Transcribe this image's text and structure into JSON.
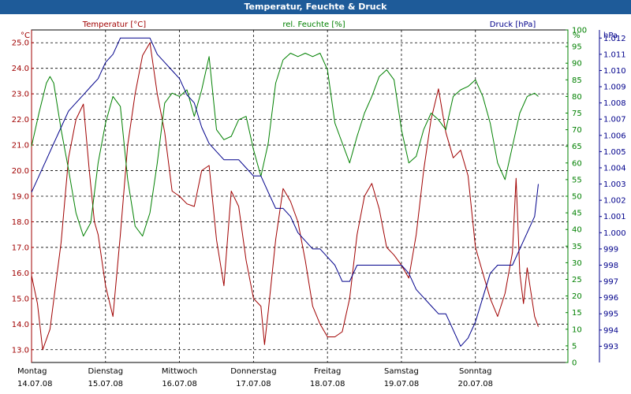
{
  "window": {
    "title": "Temperatur, Feuchte & Druck"
  },
  "colors": {
    "temperature": "#a00000",
    "humidity": "#008000",
    "pressure": "#00008b",
    "titlebar": "#1e5b99"
  },
  "chart_data": {
    "type": "line",
    "title": "Temperatur, Feuchte & Druck",
    "grid": true,
    "x_days": [
      {
        "day": "Montag",
        "date": "14.07.08"
      },
      {
        "day": "Dienstag",
        "date": "15.07.08"
      },
      {
        "day": "Mittwoch",
        "date": "16.07.08"
      },
      {
        "day": "Donnerstag",
        "date": "17.07.08"
      },
      {
        "day": "Freitag",
        "date": "18.07.08"
      },
      {
        "day": "Samstag",
        "date": "19.07.08"
      },
      {
        "day": "Sonntag",
        "date": "20.07.08"
      }
    ],
    "xlim": [
      0,
      7.25
    ],
    "axes": {
      "temperature": {
        "unit": "°C",
        "label": "Temperatur [°C]",
        "ylim": [
          12.5,
          25.5
        ],
        "ticks": [
          13.0,
          14.0,
          15.0,
          16.0,
          17.0,
          18.0,
          19.0,
          20.0,
          21.0,
          22.0,
          23.0,
          24.0,
          25.0
        ],
        "side": "left"
      },
      "humidity": {
        "unit": "%",
        "label": "rel. Feuchte [%]",
        "ylim": [
          0,
          100
        ],
        "ticks": [
          0,
          5,
          10,
          15,
          20,
          25,
          30,
          35,
          40,
          45,
          50,
          55,
          60,
          65,
          70,
          75,
          80,
          85,
          90,
          95,
          100
        ],
        "side": "right"
      },
      "pressure": {
        "unit": "hPa",
        "label": "Druck [hPa]",
        "ylim": [
          992,
          1012.5
        ],
        "ticks": [
          993,
          994,
          995,
          996,
          997,
          998,
          999,
          1000,
          1001,
          1002,
          1003,
          1004,
          1005,
          1006,
          1007,
          1008,
          1009,
          1010,
          1011,
          1012
        ],
        "side": "right"
      }
    },
    "series": [
      {
        "name": "Temperatur [°C]",
        "axis": "temperature",
        "x": [
          0,
          0.08,
          0.15,
          0.25,
          0.4,
          0.5,
          0.6,
          0.7,
          0.78,
          0.85,
          0.9,
          1.0,
          1.1,
          1.2,
          1.3,
          1.4,
          1.5,
          1.6,
          1.7,
          1.8,
          1.9,
          2.0,
          2.1,
          2.2,
          2.3,
          2.4,
          2.5,
          2.6,
          2.7,
          2.8,
          2.9,
          3.0,
          3.1,
          3.15,
          3.2,
          3.3,
          3.4,
          3.5,
          3.6,
          3.7,
          3.8,
          3.9,
          4.0,
          4.1,
          4.2,
          4.3,
          4.4,
          4.5,
          4.6,
          4.7,
          4.8,
          4.9,
          5.0,
          5.1,
          5.2,
          5.3,
          5.4,
          5.5,
          5.6,
          5.7,
          5.8,
          5.9,
          6.0,
          6.1,
          6.2,
          6.3,
          6.4,
          6.5,
          6.55,
          6.6,
          6.65,
          6.7,
          6.8,
          6.85
        ],
        "values": [
          15.9,
          14.8,
          13.0,
          13.8,
          17.2,
          20.5,
          22.0,
          22.6,
          20.0,
          18.0,
          17.5,
          15.5,
          14.3,
          17.5,
          21.0,
          23.0,
          24.5,
          25.0,
          23.0,
          21.5,
          19.2,
          19.0,
          18.7,
          18.6,
          20.0,
          20.2,
          17.3,
          15.5,
          19.2,
          18.6,
          16.5,
          15.0,
          14.7,
          13.2,
          14.5,
          17.3,
          19.3,
          18.8,
          18.0,
          16.5,
          14.7,
          14.0,
          13.5,
          13.5,
          13.7,
          15.0,
          17.5,
          19.0,
          19.5,
          18.5,
          17.0,
          16.7,
          16.3,
          15.8,
          17.5,
          20.0,
          22.0,
          23.2,
          21.5,
          20.5,
          20.8,
          19.8,
          17.0,
          16.0,
          15.0,
          14.3,
          15.2,
          16.8,
          19.7,
          16.0,
          14.8,
          16.2,
          14.3,
          13.9
        ]
      },
      {
        "name": "rel. Feuchte [%]",
        "axis": "humidity",
        "x": [
          0,
          0.1,
          0.2,
          0.25,
          0.3,
          0.4,
          0.5,
          0.6,
          0.7,
          0.8,
          0.9,
          1.0,
          1.1,
          1.2,
          1.3,
          1.4,
          1.5,
          1.6,
          1.7,
          1.8,
          1.9,
          2.0,
          2.1,
          2.2,
          2.3,
          2.4,
          2.5,
          2.6,
          2.7,
          2.8,
          2.9,
          3.0,
          3.1,
          3.2,
          3.3,
          3.4,
          3.5,
          3.6,
          3.7,
          3.8,
          3.9,
          4.0,
          4.1,
          4.2,
          4.3,
          4.4,
          4.5,
          4.6,
          4.7,
          4.8,
          4.9,
          5.0,
          5.1,
          5.2,
          5.3,
          5.4,
          5.5,
          5.6,
          5.7,
          5.8,
          5.9,
          6.0,
          6.1,
          6.2,
          6.3,
          6.4,
          6.5,
          6.6,
          6.7,
          6.8,
          6.85
        ],
        "values": [
          65,
          75,
          84,
          86,
          84,
          70,
          58,
          45,
          38,
          42,
          60,
          72,
          80,
          77,
          55,
          41,
          38,
          45,
          60,
          78,
          81,
          80,
          82,
          74,
          82,
          92,
          70,
          67,
          68,
          73,
          74,
          64,
          56,
          66,
          84,
          91,
          93,
          92,
          93,
          92,
          93,
          88,
          72,
          66,
          60,
          68,
          75,
          80,
          86,
          88,
          85,
          70,
          60,
          62,
          70,
          75,
          73,
          70,
          80,
          82,
          83,
          85,
          80,
          72,
          60,
          55,
          65,
          75,
          80,
          81,
          80
        ]
      },
      {
        "name": "Druck [hPa]",
        "axis": "pressure",
        "x": [
          0,
          0.1,
          0.2,
          0.3,
          0.4,
          0.5,
          0.6,
          0.7,
          0.8,
          0.9,
          1.0,
          1.1,
          1.2,
          1.3,
          1.4,
          1.5,
          1.6,
          1.7,
          1.8,
          1.9,
          2.0,
          2.1,
          2.2,
          2.3,
          2.4,
          2.5,
          2.6,
          2.7,
          2.8,
          2.9,
          3.0,
          3.1,
          3.2,
          3.3,
          3.4,
          3.5,
          3.6,
          3.7,
          3.8,
          3.9,
          4.0,
          4.1,
          4.2,
          4.3,
          4.4,
          4.5,
          4.6,
          4.7,
          4.8,
          4.9,
          5.0,
          5.1,
          5.2,
          5.3,
          5.4,
          5.5,
          5.6,
          5.7,
          5.8,
          5.9,
          6.0,
          6.1,
          6.2,
          6.3,
          6.4,
          6.5,
          6.6,
          6.7,
          6.8,
          6.85
        ],
        "values": [
          1002.5,
          1003.5,
          1004.5,
          1005.5,
          1006.5,
          1007.5,
          1008.0,
          1008.5,
          1009.0,
          1009.5,
          1010.5,
          1011.0,
          1012.0,
          1012.0,
          1012.0,
          1012.0,
          1012.0,
          1011.0,
          1010.5,
          1010.0,
          1009.5,
          1008.5,
          1008.0,
          1006.5,
          1005.5,
          1005.0,
          1004.5,
          1004.5,
          1004.5,
          1004.0,
          1003.5,
          1003.5,
          1002.5,
          1001.5,
          1001.5,
          1001.0,
          1000.0,
          999.5,
          999.0,
          999.0,
          998.5,
          998.0,
          997.0,
          997.0,
          998.0,
          998.0,
          998.0,
          998.0,
          998.0,
          998.0,
          998.0,
          997.5,
          996.5,
          996.0,
          995.5,
          995.0,
          995.0,
          994.0,
          993.0,
          993.5,
          994.5,
          996.0,
          997.5,
          998.0,
          998.0,
          998.0,
          999.0,
          1000.0,
          1001.0,
          1003.0
        ]
      }
    ]
  }
}
